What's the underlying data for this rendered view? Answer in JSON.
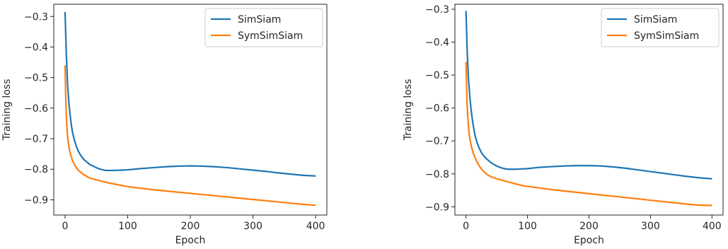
{
  "chart_data": [
    {
      "type": "line",
      "xlabel": "Epoch",
      "ylabel": "Training loss",
      "xlim": [
        -18,
        418
      ],
      "ylim": [
        -0.95,
        -0.26
      ],
      "xticks": [
        0,
        100,
        200,
        300,
        400
      ],
      "yticks": [
        -0.3,
        -0.4,
        -0.5,
        -0.6,
        -0.7,
        -0.8,
        -0.9
      ],
      "grid": false,
      "legend": "top-right",
      "series": [
        {
          "name": "SimSiam",
          "color": "#1f77b4",
          "x": [
            0,
            2,
            4,
            6,
            8,
            10,
            12,
            15,
            18,
            21,
            25,
            30,
            35,
            40,
            45,
            50,
            55,
            60,
            65,
            70,
            80,
            90,
            100,
            110,
            120,
            140,
            160,
            180,
            200,
            220,
            240,
            260,
            280,
            300,
            320,
            340,
            360,
            380,
            400
          ],
          "y": [
            -0.285,
            -0.42,
            -0.52,
            -0.58,
            -0.62,
            -0.655,
            -0.68,
            -0.705,
            -0.725,
            -0.74,
            -0.755,
            -0.768,
            -0.777,
            -0.785,
            -0.79,
            -0.795,
            -0.799,
            -0.802,
            -0.804,
            -0.804,
            -0.804,
            -0.803,
            -0.802,
            -0.8,
            -0.798,
            -0.795,
            -0.792,
            -0.79,
            -0.789,
            -0.79,
            -0.792,
            -0.795,
            -0.799,
            -0.803,
            -0.807,
            -0.812,
            -0.816,
            -0.82,
            -0.822
          ]
        },
        {
          "name": "SymSimSiam",
          "color": "#ff7f0e",
          "x": [
            0,
            1,
            2,
            3,
            4,
            5,
            6,
            8,
            10,
            12,
            15,
            18,
            21,
            25,
            30,
            35,
            40,
            50,
            60,
            70,
            80,
            90,
            100,
            120,
            140,
            160,
            180,
            200,
            220,
            240,
            260,
            280,
            300,
            320,
            340,
            360,
            380,
            400
          ],
          "y": [
            -0.46,
            -0.56,
            -0.62,
            -0.66,
            -0.69,
            -0.71,
            -0.725,
            -0.745,
            -0.76,
            -0.772,
            -0.785,
            -0.795,
            -0.803,
            -0.81,
            -0.818,
            -0.824,
            -0.829,
            -0.835,
            -0.84,
            -0.845,
            -0.849,
            -0.853,
            -0.857,
            -0.862,
            -0.867,
            -0.871,
            -0.875,
            -0.879,
            -0.883,
            -0.887,
            -0.891,
            -0.895,
            -0.899,
            -0.903,
            -0.907,
            -0.911,
            -0.915,
            -0.918
          ]
        }
      ]
    },
    {
      "type": "line",
      "xlabel": "Epoch",
      "ylabel": "Training loss",
      "xlim": [
        -18,
        418
      ],
      "ylim": [
        -0.925,
        -0.285
      ],
      "xticks": [
        0,
        100,
        200,
        300,
        400
      ],
      "yticks": [
        -0.3,
        -0.4,
        -0.5,
        -0.6,
        -0.7,
        -0.8,
        -0.9
      ],
      "grid": false,
      "legend": "top-right",
      "series": [
        {
          "name": "SimSiam",
          "color": "#1f77b4",
          "x": [
            0,
            2,
            4,
            6,
            8,
            10,
            12,
            15,
            18,
            21,
            25,
            30,
            35,
            40,
            45,
            50,
            55,
            60,
            65,
            70,
            80,
            90,
            100,
            110,
            120,
            140,
            160,
            180,
            200,
            220,
            240,
            260,
            280,
            300,
            320,
            340,
            360,
            380,
            400
          ],
          "y": [
            -0.305,
            -0.43,
            -0.51,
            -0.56,
            -0.6,
            -0.63,
            -0.655,
            -0.685,
            -0.705,
            -0.72,
            -0.735,
            -0.748,
            -0.757,
            -0.765,
            -0.771,
            -0.776,
            -0.78,
            -0.783,
            -0.785,
            -0.786,
            -0.786,
            -0.785,
            -0.784,
            -0.782,
            -0.78,
            -0.778,
            -0.776,
            -0.775,
            -0.775,
            -0.776,
            -0.779,
            -0.783,
            -0.788,
            -0.793,
            -0.798,
            -0.803,
            -0.808,
            -0.812,
            -0.815
          ]
        },
        {
          "name": "SymSimSiam",
          "color": "#ff7f0e",
          "x": [
            0,
            1,
            2,
            3,
            4,
            5,
            6,
            8,
            10,
            12,
            15,
            18,
            21,
            25,
            30,
            35,
            40,
            50,
            60,
            70,
            80,
            90,
            100,
            120,
            140,
            160,
            180,
            200,
            220,
            240,
            260,
            280,
            300,
            320,
            340,
            360,
            380,
            400
          ],
          "y": [
            -0.46,
            -0.54,
            -0.595,
            -0.63,
            -0.655,
            -0.675,
            -0.69,
            -0.71,
            -0.725,
            -0.738,
            -0.752,
            -0.764,
            -0.774,
            -0.785,
            -0.795,
            -0.803,
            -0.808,
            -0.815,
            -0.82,
            -0.825,
            -0.83,
            -0.835,
            -0.838,
            -0.843,
            -0.848,
            -0.852,
            -0.856,
            -0.86,
            -0.864,
            -0.868,
            -0.872,
            -0.876,
            -0.88,
            -0.884,
            -0.888,
            -0.892,
            -0.895,
            -0.896
          ]
        }
      ]
    }
  ]
}
